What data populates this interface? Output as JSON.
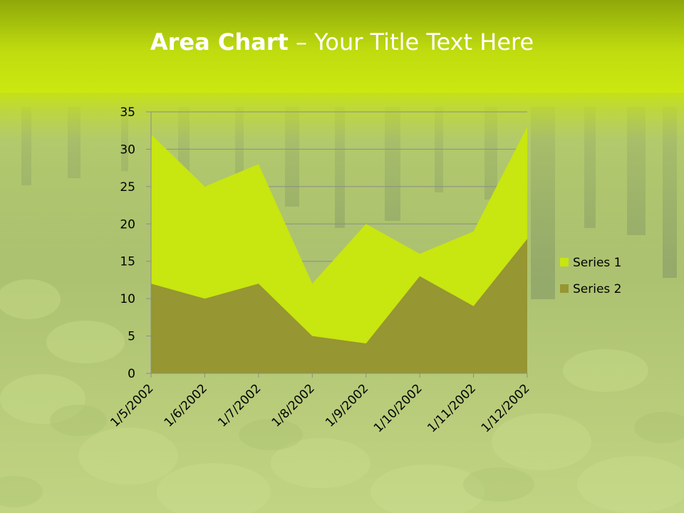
{
  "slide": {
    "title_bold": "Area Chart",
    "title_rest": " – Your Title Text Here"
  },
  "colors": {
    "top_band": "#c8e60f",
    "series1": "#c8e60f",
    "series2": "#969632",
    "axis": "#8c8c8c",
    "grid": "#8c8c8c"
  },
  "chart_data": {
    "type": "area",
    "stacked": true,
    "title": "",
    "xlabel": "",
    "ylabel": "",
    "categories": [
      "1/5/2002",
      "1/6/2002",
      "1/7/2002",
      "1/8/2002",
      "1/9/2002",
      "1/10/2002",
      "1/11/2002",
      "1/12/2002"
    ],
    "series": [
      {
        "name": "Series 1",
        "values": [
          20,
          15,
          16,
          7,
          16,
          3,
          10,
          15
        ],
        "color": "#c8e60f"
      },
      {
        "name": "Series 2",
        "values": [
          12,
          10,
          12,
          5,
          4,
          13,
          9,
          18
        ],
        "color": "#969632"
      }
    ],
    "ylim": [
      0,
      35
    ],
    "yticks": [
      "0",
      "5",
      "10",
      "15",
      "20",
      "25",
      "30",
      "35"
    ],
    "grid": true,
    "legend": "right"
  }
}
